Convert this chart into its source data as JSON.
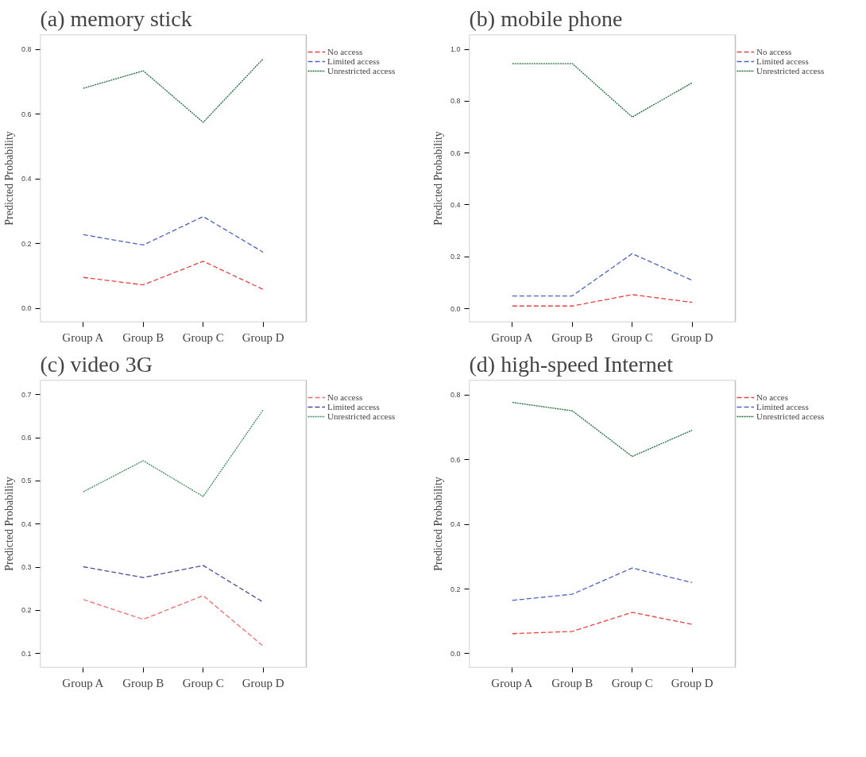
{
  "chart_data": [
    {
      "type": "line",
      "title": "(a) memory stick",
      "ylabel": "Predicted Probability",
      "categories": [
        "Group A",
        "Group B",
        "Group C",
        "Group D"
      ],
      "ylim": [
        -0.042,
        0.846
      ],
      "yticks": [
        {
          "value": 0,
          "label": "0.0"
        },
        {
          "value": 0.2,
          "label": "0.2"
        },
        {
          "value": 0.4,
          "label": "0.4"
        },
        {
          "value": 0.6,
          "label": "0.6"
        },
        {
          "value": 0.8,
          "label": "0.8"
        }
      ],
      "legend": "right",
      "grid": false,
      "series": [
        {
          "name": "No access",
          "color": "#e8413f",
          "line_style": "dashed",
          "values": [
            0.096,
            0.073,
            0.146,
            0.059
          ]
        },
        {
          "name": "Limited access",
          "color": "#4a63c4",
          "line_style": "dashed",
          "values": [
            0.228,
            0.196,
            0.284,
            0.174
          ]
        },
        {
          "name": "Unrestricted access",
          "color": "#1e6b3c",
          "line_style": "dotted",
          "values": [
            0.68,
            0.734,
            0.575,
            0.771
          ]
        }
      ]
    },
    {
      "type": "line",
      "title": "(b) mobile phone",
      "ylabel": "Predicted Probability",
      "categories": [
        "Group A",
        "Group B",
        "Group C",
        "Group D"
      ],
      "ylim": [
        -0.052,
        1.057
      ],
      "yticks": [
        {
          "value": 0,
          "label": "0.0"
        },
        {
          "value": 0.2,
          "label": "0.2"
        },
        {
          "value": 0.4,
          "label": "0.4"
        },
        {
          "value": 0.6,
          "label": "0.6"
        },
        {
          "value": 0.8,
          "label": "0.8"
        },
        {
          "value": 1.0,
          "label": "1.0"
        }
      ],
      "legend": "right",
      "grid": false,
      "series": [
        {
          "name": "No access",
          "color": "#e8413f",
          "line_style": "dashed",
          "values": [
            0.01,
            0.01,
            0.054,
            0.024
          ]
        },
        {
          "name": "Limited access",
          "color": "#4a63c4",
          "line_style": "dashed",
          "values": [
            0.049,
            0.049,
            0.212,
            0.109
          ]
        },
        {
          "name": "Unrestricted access",
          "color": "#1e6b3c",
          "line_style": "dotted",
          "values": [
            0.945,
            0.945,
            0.739,
            0.871
          ]
        }
      ]
    },
    {
      "type": "line",
      "title": "(c) video 3G",
      "ylabel": "Predicted Probability",
      "categories": [
        "Group A",
        "Group B",
        "Group C",
        "Group D"
      ],
      "ylim": [
        0.067,
        0.734
      ],
      "yticks": [
        0.1,
        0.2,
        0.3,
        0.4,
        0.5,
        0.6,
        0.7
      ],
      "legend": "right",
      "grid": false,
      "series": [
        {
          "name": "No access",
          "color": "#f26d6d",
          "line_style": "dashed",
          "values": [
            0.225,
            0.179,
            0.234,
            0.117
          ]
        },
        {
          "name": "Limited access",
          "color": "#4b4b9c",
          "line_style": "dashed",
          "values": [
            0.301,
            0.276,
            0.304,
            0.219
          ]
        },
        {
          "name": "Unrestricted access",
          "color": "#3f8f5f",
          "line_style": "dotted",
          "values": [
            0.475,
            0.547,
            0.464,
            0.665
          ]
        }
      ]
    },
    {
      "type": "line",
      "title": "(d) high-speed Internet",
      "ylabel": "Predicted Probability",
      "categories": [
        "Group A",
        "Group B",
        "Group C",
        "Group D"
      ],
      "ylim": [
        -0.043,
        0.846
      ],
      "yticks": [
        {
          "value": 0,
          "label": "0.0"
        },
        {
          "value": 0.2,
          "label": "0.2"
        },
        {
          "value": 0.4,
          "label": "0.4"
        },
        {
          "value": 0.6,
          "label": "0.6"
        },
        {
          "value": 0.8,
          "label": "0.8"
        }
      ],
      "legend": "right",
      "grid": false,
      "series": [
        {
          "name": "No acces",
          "color": "#e8413f",
          "line_style": "dashed",
          "values": [
            0.062,
            0.069,
            0.128,
            0.091
          ]
        },
        {
          "name": "Limited access",
          "color": "#4a63c4",
          "line_style": "dashed",
          "values": [
            0.165,
            0.184,
            0.265,
            0.22
          ]
        },
        {
          "name": "Unrestricted access",
          "color": "#1e6b3c",
          "line_style": "dotted",
          "values": [
            0.777,
            0.751,
            0.61,
            0.691
          ]
        }
      ]
    }
  ]
}
